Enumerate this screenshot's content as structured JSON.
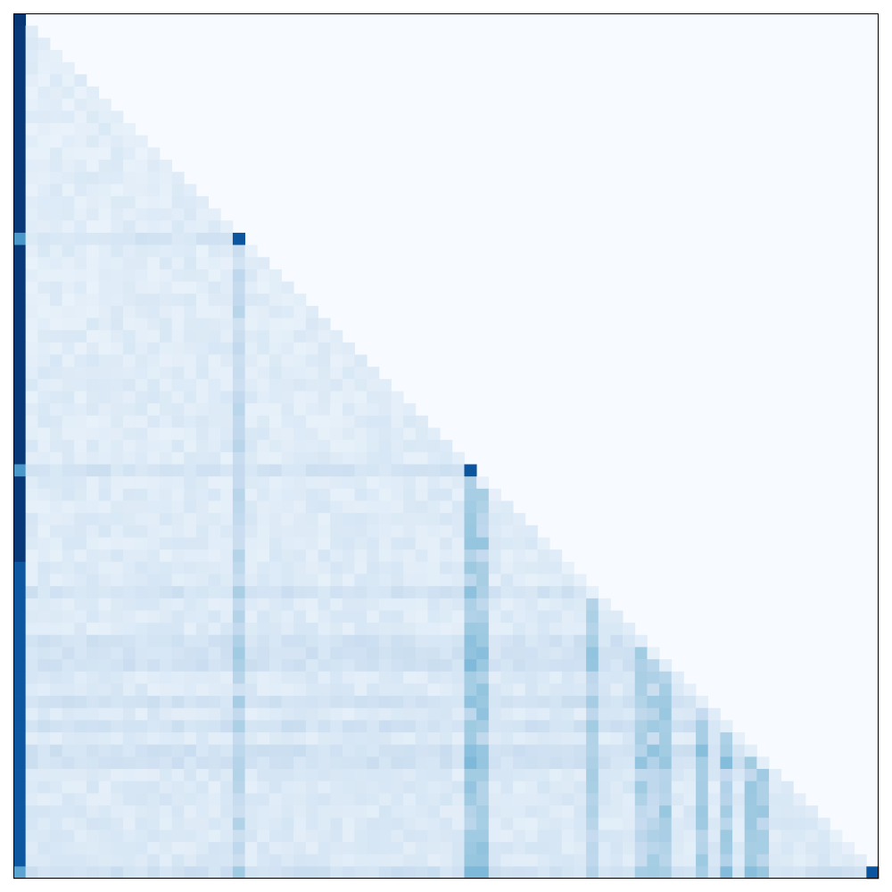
{
  "chart_data": {
    "type": "heatmap",
    "title": "",
    "xlabel": "",
    "ylabel": "",
    "rows": 71,
    "cols": 71,
    "mask": "lower-triangular",
    "colormap": "Blues",
    "value_range": [
      0,
      1
    ],
    "strong_columns": [
      {
        "col": 0,
        "value": 0.9
      },
      {
        "col": 18,
        "value": 0.28
      },
      {
        "col": 37,
        "value": 0.38
      },
      {
        "col": 38,
        "value": 0.38
      },
      {
        "col": 47,
        "value": 0.32
      },
      {
        "col": 51,
        "value": 0.33
      },
      {
        "col": 52,
        "value": 0.32
      },
      {
        "col": 53,
        "value": 0.36
      },
      {
        "col": 56,
        "value": 0.35
      },
      {
        "col": 58,
        "value": 0.35
      },
      {
        "col": 60,
        "value": 0.35
      },
      {
        "col": 61,
        "value": 0.38
      }
    ],
    "highlight_cells": [
      {
        "row": 18,
        "col": 18,
        "value": 0.86
      },
      {
        "row": 37,
        "col": 37,
        "value": 0.86
      },
      {
        "row": 70,
        "col": 70,
        "value": 0.86
      }
    ],
    "column0_row_values": [
      {
        "row": 18,
        "value": 0.6
      },
      {
        "row": 37,
        "value": 0.6
      },
      {
        "row": 70,
        "value": 0.55
      }
    ]
  },
  "colors": {
    "background": "#f7fbff",
    "frame": "#000000"
  }
}
